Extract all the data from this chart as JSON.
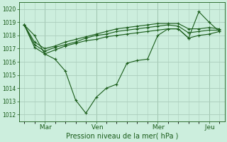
{
  "title": "Pression niveau de la mer( hPa )",
  "bg_color": "#cceedd",
  "grid_color": "#aaccbb",
  "line_color": "#1a5c1a",
  "ylim": [
    1011.5,
    1020.5
  ],
  "yticks": [
    1012,
    1013,
    1014,
    1015,
    1016,
    1017,
    1018,
    1019,
    1020
  ],
  "xtick_labels": [
    " Mar",
    " Ven",
    " Mer",
    " Jeu"
  ],
  "xtick_positions": [
    2,
    7,
    13,
    18
  ],
  "series": [
    [
      1018.8,
      1018.0,
      1016.6,
      1016.2,
      1015.3,
      1013.1,
      1012.1,
      1013.3,
      1014.0,
      1014.3,
      1015.9,
      1016.1,
      1016.2,
      1018.0,
      1018.5,
      1018.5,
      1017.8,
      1019.8,
      1019.0,
      1018.3
    ],
    [
      1018.8,
      1017.1,
      1016.6,
      1016.9,
      1017.2,
      1017.4,
      1017.6,
      1017.7,
      1017.9,
      1018.0,
      1018.1,
      1018.2,
      1018.3,
      1018.4,
      1018.5,
      1018.5,
      1017.8,
      1018.0,
      1018.1,
      1018.3
    ],
    [
      1018.8,
      1017.3,
      1016.8,
      1017.1,
      1017.3,
      1017.5,
      1017.8,
      1018.0,
      1018.1,
      1018.3,
      1018.4,
      1018.5,
      1018.6,
      1018.7,
      1018.8,
      1018.7,
      1018.2,
      1018.3,
      1018.4,
      1018.4
    ],
    [
      1018.8,
      1017.5,
      1017.0,
      1017.2,
      1017.5,
      1017.7,
      1017.9,
      1018.1,
      1018.3,
      1018.5,
      1018.6,
      1018.7,
      1018.8,
      1018.9,
      1018.9,
      1018.9,
      1018.5,
      1018.5,
      1018.6,
      1018.5
    ]
  ],
  "n_points": 20
}
